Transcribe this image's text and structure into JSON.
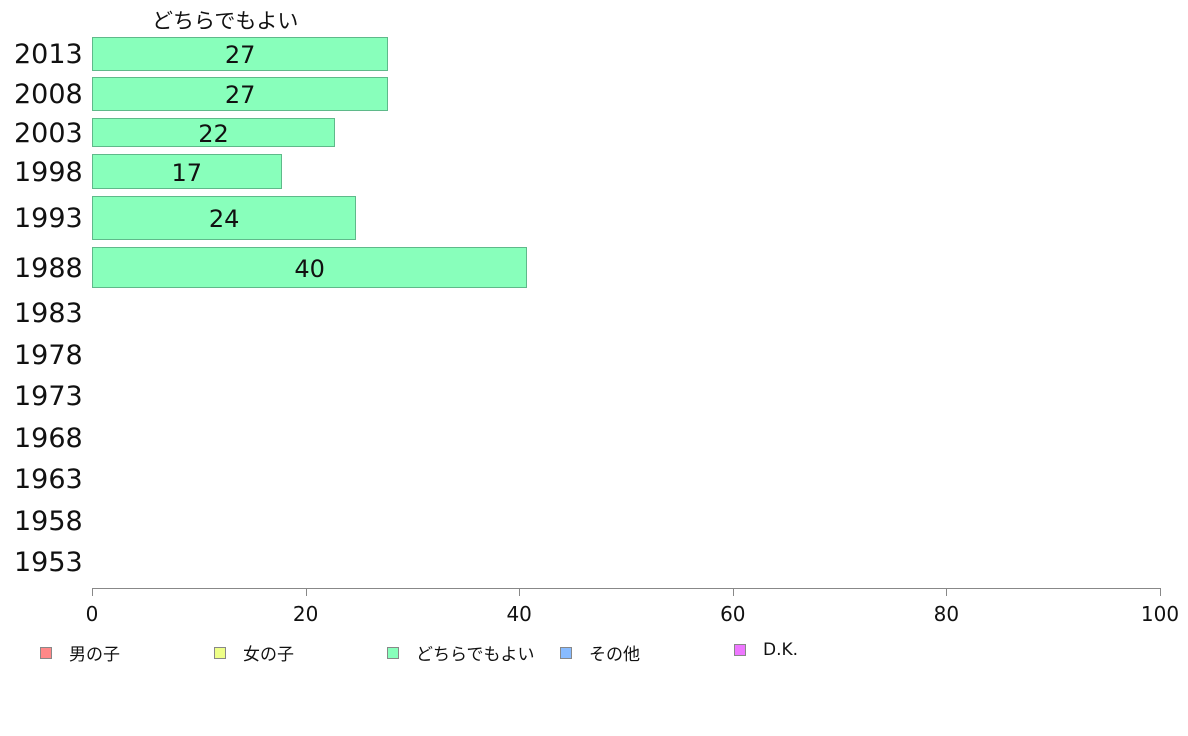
{
  "chart_data": {
    "type": "bar",
    "orientation": "horizontal",
    "title": "",
    "series_title": "どちらでもよい",
    "categories": [
      "2013",
      "2008",
      "2003",
      "1998",
      "1993",
      "1988",
      "1983",
      "1978",
      "1973",
      "1968",
      "1963",
      "1958",
      "1953"
    ],
    "series": [
      {
        "name": "どちらでもよい",
        "color": "#88ffbb",
        "values": [
          27,
          27,
          22,
          17,
          24,
          40,
          null,
          null,
          null,
          null,
          null,
          null,
          null
        ]
      }
    ],
    "xlim": [
      0,
      100
    ],
    "xticks": [
      "0",
      "20",
      "40",
      "60",
      "80",
      "100"
    ],
    "grid": false,
    "legend_placement": "bottom",
    "legend": [
      {
        "label": "男の子",
        "color": "#ff8888"
      },
      {
        "label": "女の子",
        "color": "#eeff88"
      },
      {
        "label": "どちらでもよい",
        "color": "#88ffbb"
      },
      {
        "label": "その他",
        "color": "#88bbff"
      },
      {
        "label": "D.K.",
        "color": "#ee77ff"
      }
    ]
  }
}
